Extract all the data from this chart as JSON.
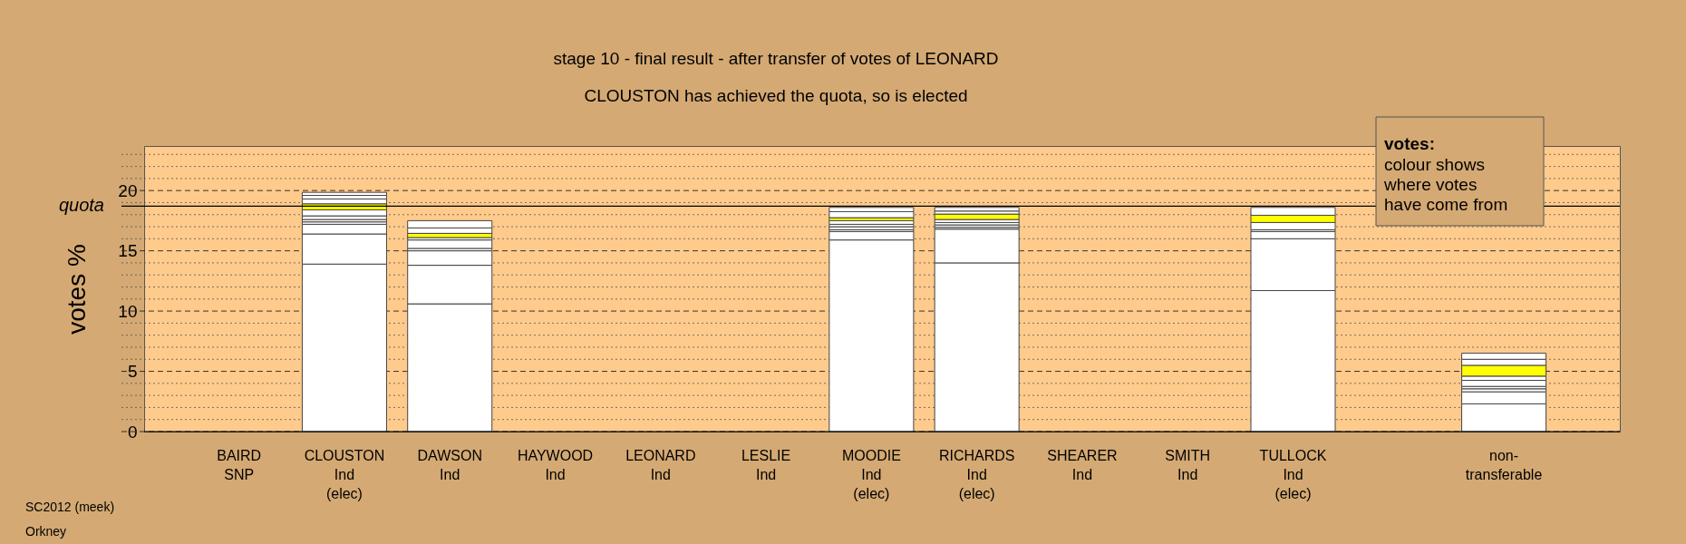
{
  "chart_data": {
    "type": "bar",
    "stacked": true,
    "title": "stage 10 - final result - after transfer of votes of LEONARD",
    "subtitle": "CLOUSTON has achieved the quota, so is elected",
    "ylabel": "votes %",
    "categories": [
      "BAIRD\nSNP",
      "CLOUSTON\nInd\n(elec)",
      "DAWSON\nInd",
      "HAYWOOD\nInd",
      "LEONARD\nInd",
      "LESLIE\nInd",
      "MOODIE\nInd\n(elec)",
      "RICHARDS\nInd\n(elec)",
      "SHEARER\nInd",
      "SMITH\nInd",
      "TULLOCK\nInd\n(elec)",
      null,
      "non-\ntransferable"
    ],
    "series": [
      {
        "color": "#ffffff",
        "values": [
          null,
          13.9,
          10.6,
          null,
          null,
          null,
          15.9,
          14.0,
          null,
          null,
          11.7,
          null,
          2.3
        ]
      },
      {
        "color": "#ffffff",
        "values": [
          null,
          2.5,
          3.2,
          null,
          null,
          null,
          0.7,
          2.8,
          null,
          null,
          4.3,
          null,
          1.0
        ]
      },
      {
        "color": "#ffffff",
        "values": [
          null,
          0.8,
          1.2,
          null,
          null,
          null,
          0.15,
          0.15,
          null,
          null,
          0.6,
          null,
          0.25
        ]
      },
      {
        "color": "#ffffff",
        "values": [
          null,
          0.2,
          0.2,
          null,
          null,
          null,
          0.25,
          0.2,
          null,
          null,
          0.15,
          null,
          0.2
        ]
      },
      {
        "color": "#ffffff",
        "values": [
          null,
          0.2,
          0.7,
          null,
          null,
          null,
          0.2,
          0.2,
          null,
          null,
          0.6,
          null,
          0.5
        ]
      },
      {
        "color": "#ffffff",
        "values": [
          null,
          0.3,
          0.2,
          null,
          null,
          null,
          0.3,
          0.25,
          null,
          null,
          null,
          null,
          0.35
        ]
      },
      {
        "color": "#ffffff",
        "values": [
          null,
          0.5,
          null,
          null,
          null,
          null,
          null,
          null,
          null,
          null,
          null,
          null,
          null
        ]
      },
      {
        "color": "#ffff00",
        "values": [
          null,
          0.5,
          0.35,
          null,
          null,
          null,
          0.25,
          0.45,
          null,
          null,
          0.6,
          null,
          0.9
        ]
      },
      {
        "color": "#ffffff",
        "values": [
          null,
          0.4,
          0.45,
          null,
          null,
          null,
          0.5,
          0.25,
          null,
          null,
          0.65,
          null,
          0.5
        ]
      },
      {
        "color": "#ffffff",
        "values": [
          null,
          0.3,
          0.6,
          null,
          null,
          null,
          0.35,
          0.3,
          null,
          null,
          null,
          null,
          0.5
        ]
      },
      {
        "color": "#ffffff",
        "values": [
          null,
          0.25,
          null,
          null,
          null,
          null,
          null,
          null,
          null,
          null,
          null,
          null,
          null
        ]
      }
    ],
    "ylim": [
      0,
      23.7
    ],
    "yticks": [
      0,
      {
        "value": 1,
        "label": null
      },
      {
        "value": 2,
        "label": null
      },
      {
        "value": 3,
        "label": null
      },
      {
        "value": 4,
        "label": null
      },
      5,
      {
        "value": 6,
        "label": null
      },
      {
        "value": 7,
        "label": null
      },
      {
        "value": 8,
        "label": null
      },
      {
        "value": 9,
        "label": null
      },
      10,
      {
        "value": 11,
        "label": null
      },
      {
        "value": 12,
        "label": null
      },
      {
        "value": 13,
        "label": null
      },
      {
        "value": 14,
        "label": null
      },
      15,
      {
        "value": 16,
        "label": null
      },
      {
        "value": 17,
        "label": null
      },
      {
        "value": 18,
        "label": null
      },
      {
        "value": 19,
        "label": null
      },
      20,
      {
        "value": 21,
        "label": null
      },
      {
        "value": 22,
        "label": null
      },
      {
        "value": 23,
        "label": null
      }
    ],
    "grid": true,
    "ref_lines": [
      {
        "axis": "y",
        "value": 18.7,
        "label": "quota",
        "color": "#000000"
      }
    ],
    "annotations": [
      "SC2012 (meek)",
      "Orkney",
      "votes:",
      "colour shows\nwhere votes\nhave come from"
    ]
  }
}
